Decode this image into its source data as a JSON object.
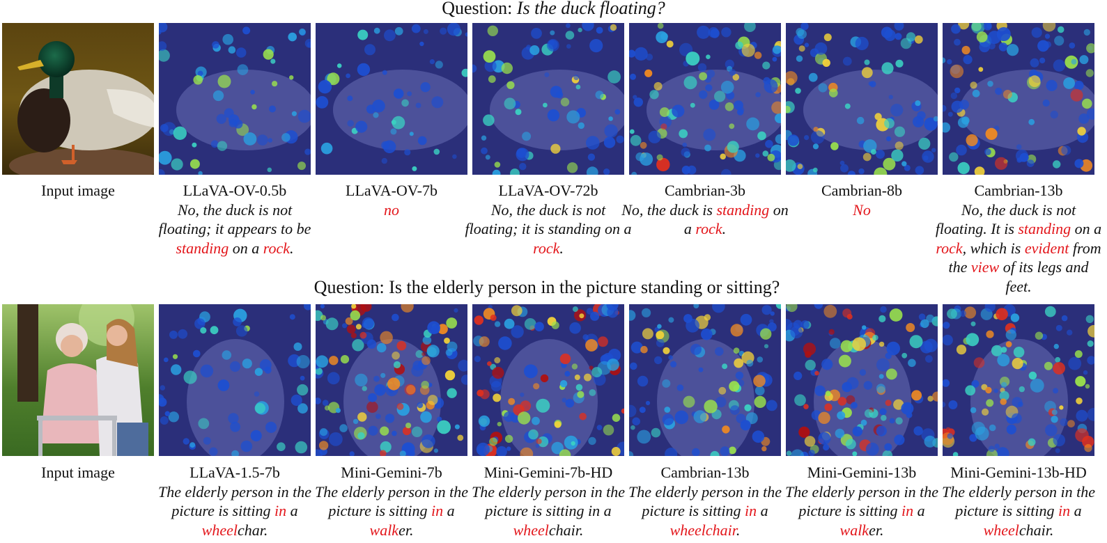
{
  "row1": {
    "question_prefix": "Question: ",
    "question_text": "Is the duck floating?",
    "input_label": "Input image",
    "models": [
      {
        "name": "LLaVA-OV-0.5b",
        "answer": [
          [
            "No, the duck is not floating; it appears to be ",
            false
          ],
          [
            "standing",
            true
          ],
          [
            " on a ",
            false
          ],
          [
            "rock",
            true
          ],
          [
            ".",
            false
          ]
        ]
      },
      {
        "name": "LLaVA-OV-7b",
        "answer": [
          [
            "no",
            true
          ]
        ]
      },
      {
        "name": "LLaVA-OV-72b",
        "answer": [
          [
            "No, the duck is not floating; it is standing on a ",
            false
          ],
          [
            "rock",
            true
          ],
          [
            ".",
            false
          ]
        ]
      },
      {
        "name": "Cambrian-3b",
        "answer": [
          [
            "No, the duck is ",
            false
          ],
          [
            "standing",
            true
          ],
          [
            " on a ",
            false
          ],
          [
            "rock",
            true
          ],
          [
            ".",
            false
          ]
        ]
      },
      {
        "name": "Cambrian-8b",
        "answer": [
          [
            "No",
            true
          ]
        ]
      },
      {
        "name": "Cambrian-13b",
        "answer": [
          [
            "No, the duck is not floating. It is ",
            false
          ],
          [
            "standing",
            true
          ],
          [
            " on a ",
            false
          ],
          [
            "rock",
            true
          ],
          [
            ", which is ",
            false
          ],
          [
            "evident",
            true
          ],
          [
            " from the ",
            false
          ],
          [
            "view",
            true
          ],
          [
            " of its legs and feet.",
            false
          ]
        ]
      }
    ]
  },
  "row2": {
    "question_text": "Question: Is the elderly person in the picture standing or sitting?",
    "input_label": "Input image",
    "models": [
      {
        "name": "LLaVA-1.5-7b",
        "answer": [
          [
            "The elderly person in the picture is sitting ",
            false
          ],
          [
            "in",
            true
          ],
          [
            " a ",
            false
          ],
          [
            "wheel",
            true
          ],
          [
            "char.",
            false
          ]
        ]
      },
      {
        "name": "Mini-Gemini-7b",
        "answer": [
          [
            "The elderly person in the picture is sitting ",
            false
          ],
          [
            "in",
            true
          ],
          [
            " a ",
            false
          ],
          [
            "walk",
            true
          ],
          [
            "er.",
            false
          ]
        ]
      },
      {
        "name": "Mini-Gemini-7b-HD",
        "answer": [
          [
            "The elderly person in the picture is sitting in a ",
            false
          ],
          [
            "wheel",
            true
          ],
          [
            "chair.",
            false
          ]
        ]
      },
      {
        "name": "Cambrian-13b",
        "answer": [
          [
            "The elderly person in the picture is sitting ",
            false
          ],
          [
            "in",
            true
          ],
          [
            " a ",
            false
          ],
          [
            "wheelchair",
            true
          ],
          [
            ".",
            false
          ]
        ]
      },
      {
        "name": "Mini-Gemini-13b",
        "answer": [
          [
            "The elderly person in the picture is sitting ",
            false
          ],
          [
            "in",
            true
          ],
          [
            " a ",
            false
          ],
          [
            "walk",
            true
          ],
          [
            "er.",
            false
          ]
        ]
      },
      {
        "name": "Mini-Gemini-13b-HD",
        "answer": [
          [
            "The elderly person in the picture is sitting ",
            false
          ],
          [
            "in",
            true
          ],
          [
            " a ",
            false
          ],
          [
            "wheel",
            true
          ],
          [
            "chair.",
            false
          ]
        ]
      }
    ]
  },
  "colors": {
    "highlight": "#e3161b",
    "heatmap_background": "#2b2f7a"
  }
}
